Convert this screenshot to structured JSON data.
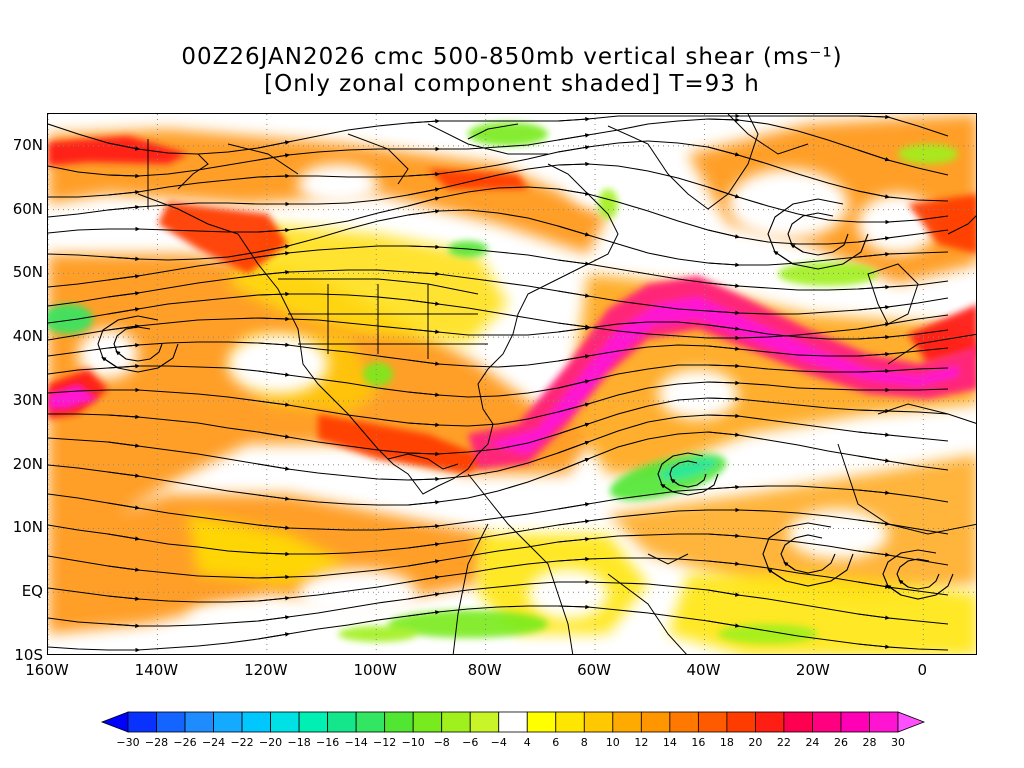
{
  "title": {
    "line1": "00Z26JAN2026 cmc 500-850mb vertical shear (ms⁻¹)",
    "line2": "[Only zonal component shaded] T=93 h"
  },
  "map": {
    "lat_ticks": [
      "70N",
      "60N",
      "50N",
      "40N",
      "30N",
      "20N",
      "10N",
      "EQ",
      "10S"
    ],
    "lon_ticks": [
      "160W",
      "140W",
      "120W",
      "100W",
      "80W",
      "60W",
      "40W",
      "20W",
      "0"
    ],
    "lat_range": [
      -10,
      75
    ],
    "lon_range": [
      -160,
      10
    ],
    "grid": "dotted",
    "overlay": "streamlines"
  },
  "colorbar": {
    "labels": [
      "-30",
      "-28",
      "-26",
      "-24",
      "-22",
      "-20",
      "-18",
      "-16",
      "-14",
      "-12",
      "-10",
      "-8",
      "-6",
      "-4",
      "4",
      "6",
      "8",
      "10",
      "12",
      "14",
      "16",
      "18",
      "20",
      "22",
      "24",
      "26",
      "28",
      "30"
    ],
    "colors": [
      "#0000ff",
      "#0a32ff",
      "#1464ff",
      "#1e8cff",
      "#14aaff",
      "#00c8ff",
      "#00e1e6",
      "#00f0b4",
      "#14e68c",
      "#32e664",
      "#50e632",
      "#78eb1e",
      "#a0f01e",
      "#c8f528",
      "#ffffff",
      "#ffff00",
      "#ffe600",
      "#ffc800",
      "#ffaa00",
      "#ff9600",
      "#ff7800",
      "#ff5a00",
      "#ff3c00",
      "#ff1e14",
      "#ff0050",
      "#ff0080",
      "#ff00b4",
      "#ff14d2",
      "#ff50ff"
    ]
  }
}
